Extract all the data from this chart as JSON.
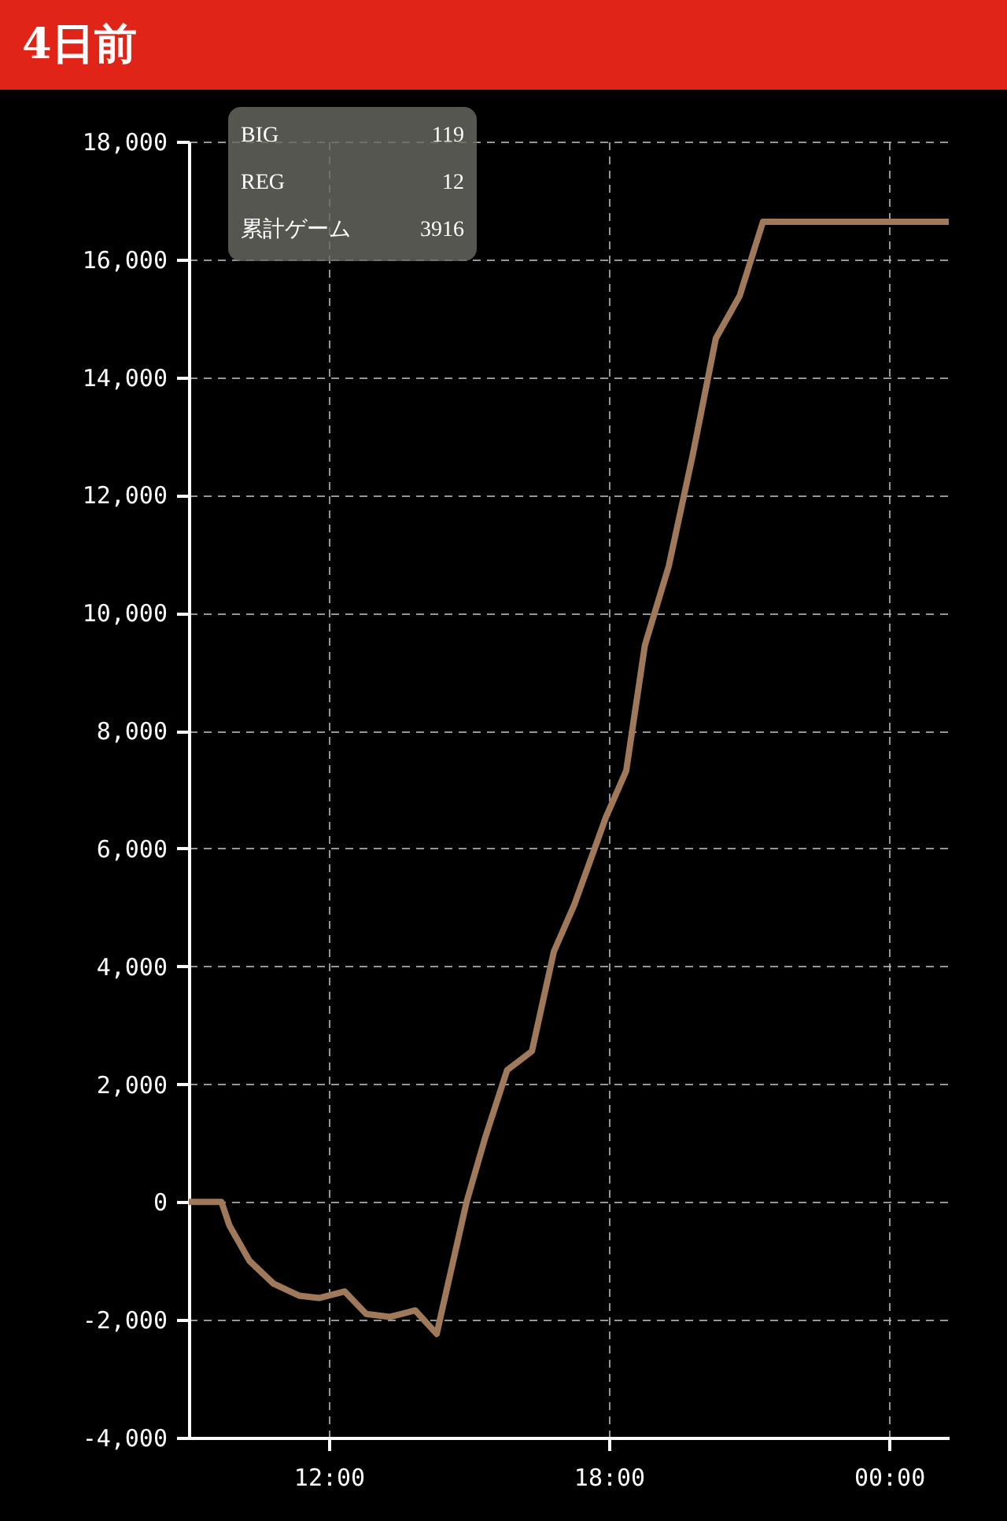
{
  "chart_data": {
    "type": "line",
    "title": "4日前",
    "annotations": [
      "BIG 119",
      "REG 12",
      "累計ゲーム 3916"
    ],
    "x": [
      9.0,
      9.7,
      9.87,
      10.3,
      10.82,
      11.36,
      11.8,
      12.34,
      12.8,
      13.31,
      13.85,
      14.31,
      14.95,
      15.36,
      15.82,
      16.35,
      16.82,
      17.26,
      17.93,
      18.37,
      18.77,
      19.28,
      19.79,
      20.29,
      20.8,
      21.3,
      25.28
    ],
    "series": [
      {
        "color": "#a0785a",
        "values": [
          0,
          0,
          -400,
          -1000,
          -1390,
          -1590,
          -1630,
          -1520,
          -1900,
          -1950,
          -1840,
          -2240,
          0,
          1120,
          2240,
          2560,
          4250,
          5050,
          6520,
          7320,
          9450,
          10790,
          12660,
          14660,
          15380,
          16640,
          16640
        ]
      }
    ],
    "xlim": [
      9,
      25.28
    ],
    "xticks": [
      {
        "value": 12,
        "label": "12:00"
      },
      {
        "value": 18,
        "label": "18:00"
      },
      {
        "value": 24,
        "label": "00:00"
      }
    ],
    "ylim": [
      -4000,
      18000
    ],
    "yticks": [
      {
        "value": -4000,
        "label": "-4,000"
      },
      {
        "value": -2000,
        "label": "-2,000"
      },
      {
        "value": 0,
        "label": "0"
      },
      {
        "value": 2000,
        "label": "2,000"
      },
      {
        "value": 4000,
        "label": "4,000"
      },
      {
        "value": 6000,
        "label": "6,000"
      },
      {
        "value": 8000,
        "label": "8,000"
      },
      {
        "value": 10000,
        "label": "10,000"
      },
      {
        "value": 12000,
        "label": "12,000"
      },
      {
        "value": 14000,
        "label": "14,000"
      },
      {
        "value": 16000,
        "label": "16,000"
      },
      {
        "value": 18000,
        "label": "18,000"
      }
    ],
    "grid": true,
    "marker": "none",
    "line_style": "solid"
  }
}
